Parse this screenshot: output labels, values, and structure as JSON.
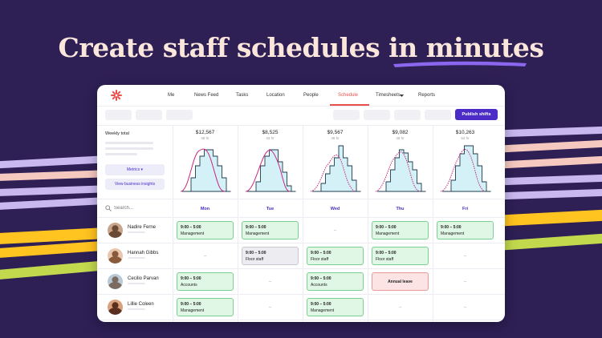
{
  "headline": {
    "part1": "Create staff schedules in ",
    "part2": "minutes"
  },
  "colors": {
    "background": "#2e1f55",
    "accent": "#e8514b",
    "brand": "#4b2cc7",
    "stripe_lavender": "#c9b8f0",
    "stripe_yellow": "#ffc41f",
    "stripe_lime": "#c2d94d",
    "stripe_pink": "#f6c9c0"
  },
  "nav": {
    "logo": "starburst-logo-icon",
    "items": [
      "Me",
      "News Feed",
      "Tasks",
      "Location",
      "People",
      "Schedule",
      "Timesheets",
      "Reports"
    ],
    "active": "Schedule"
  },
  "toolbar": {
    "publish_label": "Publish shifts"
  },
  "weekly": {
    "label": "Weekly total",
    "metrics_label": "Metrics",
    "insights_label": "View business insights"
  },
  "days": [
    {
      "name": "Mon",
      "amount": "$12,567",
      "hours": "46 hr"
    },
    {
      "name": "Tue",
      "amount": "$8,525",
      "hours": "44 hr"
    },
    {
      "name": "Wed",
      "amount": "$9,567",
      "hours": "46 hr"
    },
    {
      "name": "Thu",
      "amount": "$9,082",
      "hours": "46 hr"
    },
    {
      "name": "Fri",
      "amount": "$10,263",
      "hours": "52 hr"
    }
  ],
  "search": {
    "placeholder": "Search..."
  },
  "employees": [
    {
      "name": "Nadire Ferne",
      "avatar": "avatar-nadire",
      "shifts": [
        {
          "type": "green",
          "time": "9:00 – 5:00",
          "role": "Management"
        },
        {
          "type": "green",
          "time": "9:00 – 5:00",
          "role": "Management"
        },
        {
          "type": "none",
          "text": "–"
        },
        {
          "type": "green",
          "time": "9:00 – 5:00",
          "role": "Management"
        },
        {
          "type": "green",
          "time": "9:00 – 5:00",
          "role": "Management"
        }
      ]
    },
    {
      "name": "Hannah Gibbs",
      "avatar": "avatar-hannah",
      "shifts": [
        {
          "type": "none",
          "text": "–"
        },
        {
          "type": "grey",
          "time": "9:00 – 5:00",
          "role": "Floor staff"
        },
        {
          "type": "green",
          "time": "9:00 – 5:00",
          "role": "Floor staff"
        },
        {
          "type": "green",
          "time": "9:00 – 5:00",
          "role": "Floor staff"
        },
        {
          "type": "none",
          "text": "–"
        }
      ]
    },
    {
      "name": "Cecilio Parvan",
      "avatar": "avatar-cecilio",
      "shifts": [
        {
          "type": "green",
          "time": "9:00 – 5:00",
          "role": "Accounts"
        },
        {
          "type": "none",
          "text": "–"
        },
        {
          "type": "green",
          "time": "9:00 – 5:00",
          "role": "Accounts"
        },
        {
          "type": "red",
          "time": "",
          "role": "Annual leave"
        },
        {
          "type": "none",
          "text": "–"
        }
      ]
    },
    {
      "name": "Lillie Coleen",
      "avatar": "avatar-lillie",
      "shifts": [
        {
          "type": "green",
          "time": "9:00 – 5:00",
          "role": "Management"
        },
        {
          "type": "none",
          "text": "–"
        },
        {
          "type": "green",
          "time": "9:00 – 5:00",
          "role": "Management"
        },
        {
          "type": "none",
          "text": "–"
        },
        {
          "type": "none",
          "text": "–"
        }
      ]
    }
  ]
}
